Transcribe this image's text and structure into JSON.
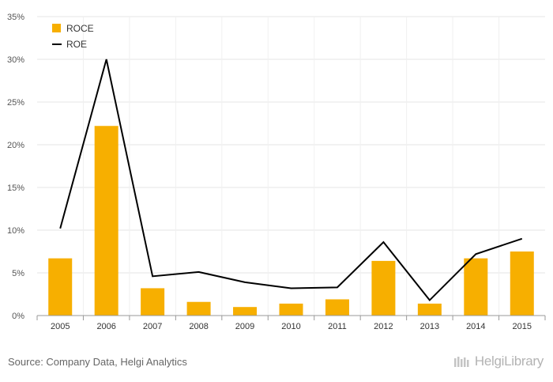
{
  "chart_data": {
    "type": "bar",
    "categories": [
      "2005",
      "2006",
      "2007",
      "2008",
      "2009",
      "2010",
      "2011",
      "2012",
      "2013",
      "2014",
      "2015"
    ],
    "series": [
      {
        "name": "ROCE",
        "type": "bar",
        "color": "#F7AF00",
        "values": [
          6.7,
          22.2,
          3.2,
          1.6,
          1.0,
          1.4,
          1.9,
          6.4,
          1.4,
          6.7,
          7.5
        ]
      },
      {
        "name": "ROE",
        "type": "line",
        "color": "#000000",
        "values": [
          10.2,
          30.0,
          4.6,
          5.1,
          3.9,
          3.2,
          3.3,
          8.6,
          1.8,
          7.2,
          9.0
        ]
      }
    ],
    "ylim": [
      0,
      35
    ],
    "yticks": [
      0,
      5,
      10,
      15,
      20,
      25,
      30,
      35
    ],
    "ytick_labels": [
      "0%",
      "5%",
      "10%",
      "15%",
      "20%",
      "25%",
      "30%",
      "35%"
    ],
    "grid": true,
    "legend_position": "top-left"
  },
  "footer": {
    "source": "Source: Company Data, Helgi Analytics",
    "logo_text": "HelgiLibrary"
  }
}
